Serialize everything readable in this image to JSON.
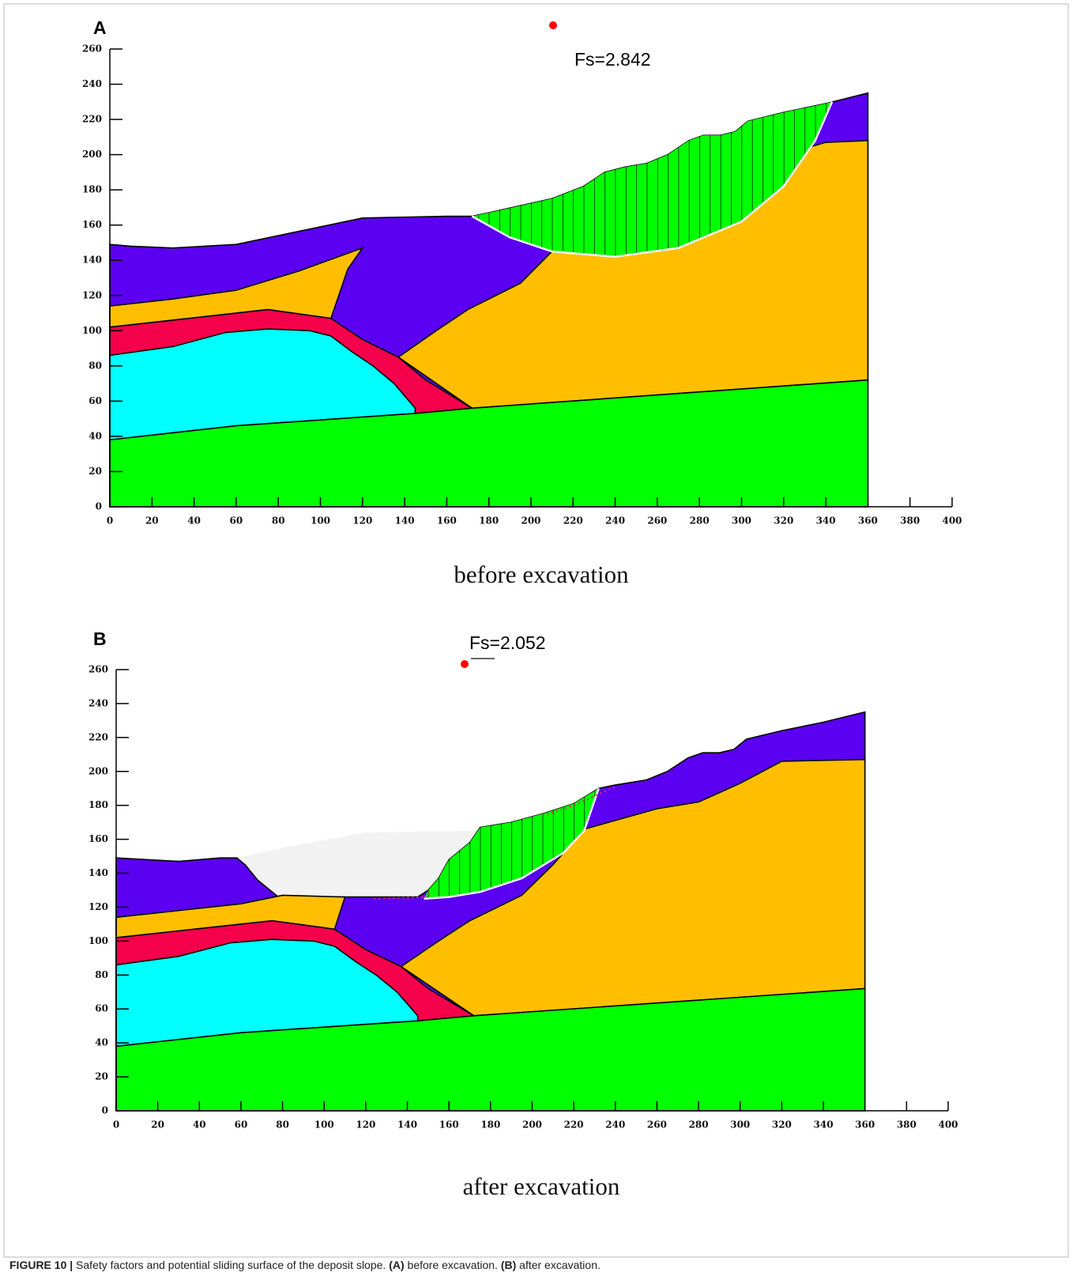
{
  "chart_data": [
    {
      "type": "section",
      "panel_label": "A",
      "annotation": "Fs=2.842",
      "subtitle": "before excavation",
      "xlim": [
        0,
        400
      ],
      "ylim": [
        0,
        260
      ],
      "xticks": [
        0,
        20,
        40,
        60,
        80,
        100,
        120,
        140,
        160,
        180,
        200,
        220,
        240,
        260,
        280,
        300,
        320,
        340,
        360,
        380,
        400
      ],
      "yticks": [
        0,
        20,
        40,
        60,
        80,
        100,
        120,
        140,
        160,
        180,
        200,
        220,
        240,
        260
      ]
    },
    {
      "type": "section",
      "panel_label": "B",
      "annotation": "Fs=2.052",
      "subtitle": "after excavation",
      "xlim": [
        0,
        400
      ],
      "ylim": [
        0,
        260
      ],
      "xticks": [
        0,
        20,
        40,
        60,
        80,
        100,
        120,
        140,
        160,
        180,
        200,
        220,
        240,
        260,
        280,
        300,
        320,
        340,
        360,
        380,
        400
      ],
      "yticks": [
        0,
        20,
        40,
        60,
        80,
        100,
        120,
        140,
        160,
        180,
        200,
        220,
        240,
        260
      ]
    }
  ],
  "caption": {
    "label": "FIGURE 10 |",
    "text1": " Safety factors and potential sliding surface of the deposit slope. ",
    "a": "(A)",
    "text2": " before excavation. ",
    "b": "(B)",
    "text3": " after excavation."
  }
}
